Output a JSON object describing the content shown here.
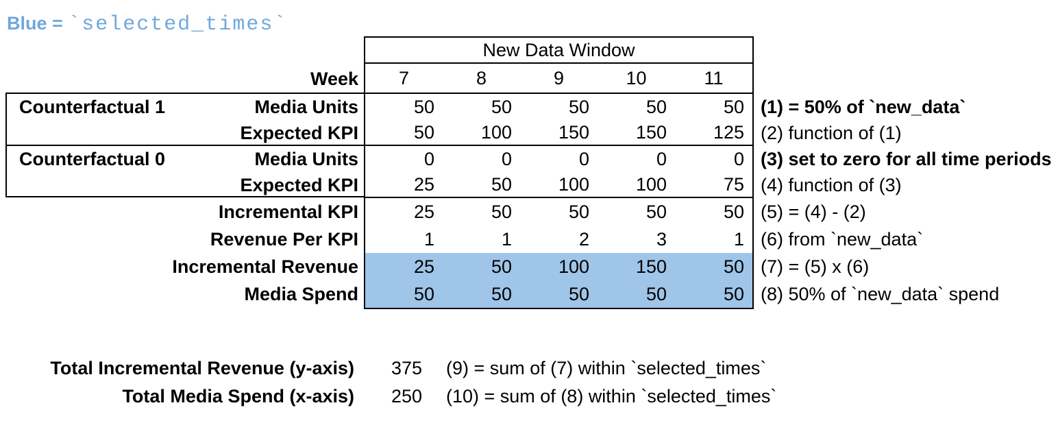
{
  "legend": {
    "prefix": "Blue = ",
    "code": "`selected_times`"
  },
  "colors": {
    "highlight_fill": "#9fc5e8",
    "legend_text": "#6fa8dc",
    "border": "#000000"
  },
  "table": {
    "window_title": "New Data Window",
    "week_label": "Week",
    "weeks": [
      "7",
      "8",
      "9",
      "10",
      "11"
    ],
    "groups": [
      {
        "name": "Counterfactual 1"
      },
      {
        "name": "Counterfactual 0"
      }
    ],
    "rows": [
      {
        "label": "Media Units",
        "values": [
          50,
          50,
          50,
          50,
          50
        ],
        "note": "(1) = 50% of `new_data`",
        "note_bold": true,
        "highlighted": false
      },
      {
        "label": "Expected KPI",
        "values": [
          50,
          100,
          150,
          150,
          125
        ],
        "note": "(2) function of (1)",
        "note_bold": false,
        "highlighted": false
      },
      {
        "label": "Media Units",
        "values": [
          0,
          0,
          0,
          0,
          0
        ],
        "note": "(3) set to zero for all time periods",
        "note_bold": true,
        "highlighted": false
      },
      {
        "label": "Expected KPI",
        "values": [
          25,
          50,
          100,
          100,
          75
        ],
        "note": "(4) function of (3)",
        "note_bold": false,
        "highlighted": false
      },
      {
        "label": "Incremental KPI",
        "values": [
          25,
          50,
          50,
          50,
          50
        ],
        "note": "(5) = (4) - (2)",
        "note_bold": false,
        "highlighted": false
      },
      {
        "label": "Revenue Per KPI",
        "values": [
          1,
          1,
          2,
          3,
          1
        ],
        "note": "(6) from `new_data`",
        "note_bold": false,
        "highlighted": false
      },
      {
        "label": "Incremental Revenue",
        "values": [
          25,
          50,
          100,
          150,
          50
        ],
        "note": "(7) = (5) x (6)",
        "note_bold": false,
        "highlighted": true
      },
      {
        "label": "Media Spend",
        "values": [
          50,
          50,
          50,
          50,
          50
        ],
        "note": "(8) 50% of `new_data` spend",
        "note_bold": false,
        "highlighted": true
      }
    ]
  },
  "totals": [
    {
      "label": "Total Incremental Revenue (y-axis)",
      "value": "375",
      "note": "(9) = sum of (7) within `selected_times`"
    },
    {
      "label": "Total Media Spend (x-axis)",
      "value": "250",
      "note": "(10) = sum of (8) within `selected_times`"
    }
  ],
  "chart_data": {
    "type": "table",
    "title": "New Data Window",
    "columns": [
      "Week 7",
      "Week 8",
      "Week 9",
      "Week 10",
      "Week 11"
    ],
    "rows": [
      {
        "group": "Counterfactual 1",
        "label": "Media Units",
        "values": [
          50,
          50,
          50,
          50,
          50
        ]
      },
      {
        "group": "Counterfactual 1",
        "label": "Expected KPI",
        "values": [
          50,
          100,
          150,
          150,
          125
        ]
      },
      {
        "group": "Counterfactual 0",
        "label": "Media Units",
        "values": [
          0,
          0,
          0,
          0,
          0
        ]
      },
      {
        "group": "Counterfactual 0",
        "label": "Expected KPI",
        "values": [
          25,
          50,
          100,
          100,
          75
        ]
      },
      {
        "group": null,
        "label": "Incremental KPI",
        "values": [
          25,
          50,
          50,
          50,
          50
        ]
      },
      {
        "group": null,
        "label": "Revenue Per KPI",
        "values": [
          1,
          1,
          2,
          3,
          1
        ]
      },
      {
        "group": null,
        "label": "Incremental Revenue",
        "values": [
          25,
          50,
          100,
          150,
          50
        ]
      },
      {
        "group": null,
        "label": "Media Spend",
        "values": [
          50,
          50,
          50,
          50,
          50
        ]
      }
    ],
    "highlighted_rows": [
      "Incremental Revenue",
      "Media Spend"
    ],
    "totals": {
      "total_incremental_revenue": 375,
      "total_media_spend": 250
    }
  }
}
